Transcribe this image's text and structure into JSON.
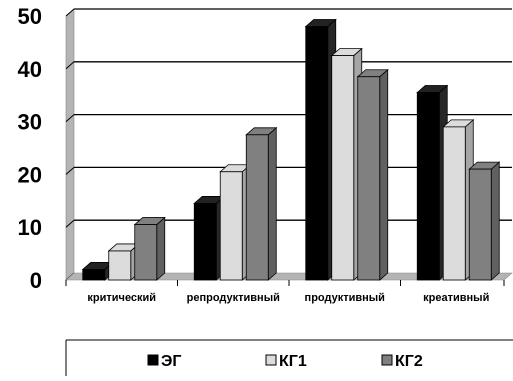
{
  "chart_data": {
    "type": "bar",
    "title": "",
    "xlabel": "",
    "ylabel": "",
    "categories": [
      "критический",
      "репродуктивный",
      "продуктивный",
      "креативный"
    ],
    "series": [
      {
        "name": "ЭГ",
        "values": [
          2,
          14.5,
          48,
          35.5
        ]
      },
      {
        "name": "КГ1",
        "values": [
          5.5,
          20.5,
          42.5,
          29
        ]
      },
      {
        "name": "КГ2",
        "values": [
          10.5,
          27.5,
          38.5,
          21
        ]
      }
    ],
    "ylim": [
      0,
      50
    ],
    "yticks": [
      "0",
      "10",
      "20",
      "30",
      "40",
      "50"
    ],
    "grid": true,
    "legend_position": "bottom",
    "colors": {
      "ЭГ": "#000000",
      "КГ1": "#dcdcdc",
      "КГ2": "#808080",
      "wall": "#b4b4b4",
      "grid": "#000000"
    }
  }
}
